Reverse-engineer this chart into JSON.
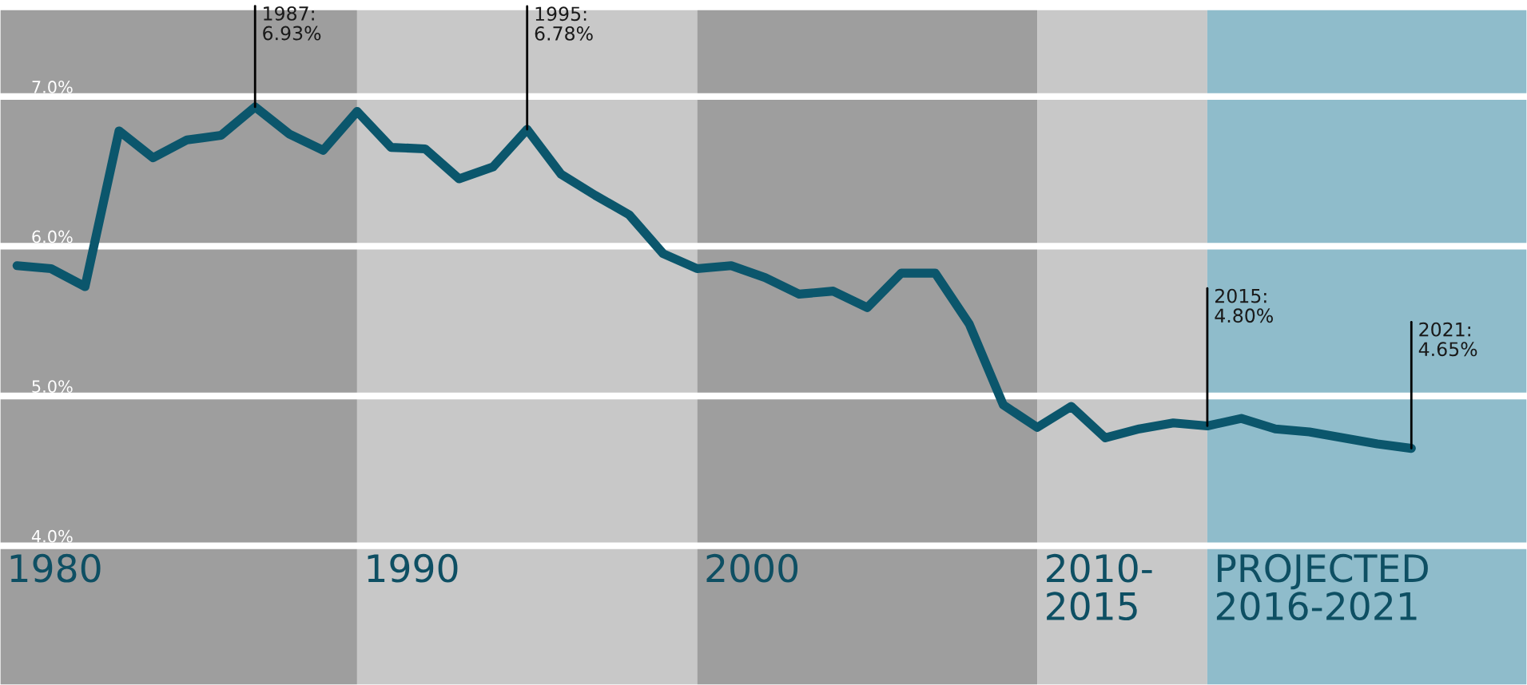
{
  "chart_data": {
    "type": "line",
    "categories": [
      null,
      null,
      null,
      null,
      null,
      null,
      null,
      null,
      null,
      null,
      null,
      null,
      null,
      null,
      null,
      null,
      null,
      null,
      null,
      null,
      null,
      null,
      null,
      null,
      null,
      null,
      null,
      null,
      null,
      null,
      null,
      null,
      null,
      null,
      null,
      null,
      null,
      null,
      null,
      null,
      null,
      null
    ],
    "series": [
      {
        "color": "#0b566c",
        "values": [
          5.87,
          5.85,
          5.73,
          6.77,
          6.59,
          6.71,
          6.74,
          6.93,
          6.75,
          6.64,
          6.9,
          6.66,
          6.65,
          6.45,
          6.53,
          6.78,
          6.48,
          6.34,
          6.21,
          5.95,
          5.85,
          5.87,
          5.79,
          5.68,
          5.7,
          5.59,
          5.82,
          5.82,
          5.48,
          4.94,
          4.79,
          4.93,
          4.72,
          4.78,
          4.82,
          4.8,
          4.85,
          4.78,
          4.76,
          4.72,
          4.68,
          4.65
        ]
      }
    ],
    "ylim": [
      3.07,
      7.58
    ],
    "yticks": [
      {
        "value": 4,
        "label": "4.0%"
      },
      {
        "value": 5,
        "label": "5.0%"
      },
      {
        "value": 6,
        "label": "6.0%"
      },
      {
        "value": 7,
        "label": "7.0%"
      }
    ],
    "grid": "y",
    "marker": "none",
    "line_style": "solid",
    "annotations": [
      "1987:\n6.93%",
      "1995:\n6.78%",
      "2015:\n4.80%",
      "2021:\n4.65%",
      "1980",
      "1990",
      "2000",
      "2010-\n2015",
      "PROJECTED\n2016-2021"
    ]
  }
}
